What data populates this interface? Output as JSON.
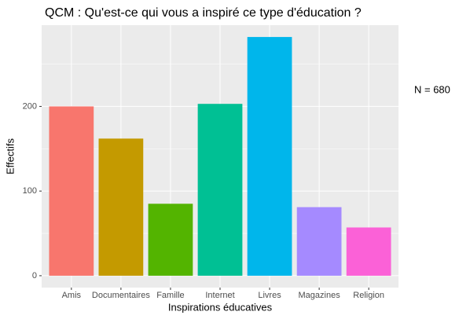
{
  "chart_data": {
    "type": "bar",
    "title": "QCM : Qu'est-ce qui vous a inspiré ce type d'éducation ?",
    "x_label": "Inspirations éducatives",
    "y_label": "Effectifs",
    "annotation": "N = 680",
    "categories": [
      "Amis",
      "Documentaires",
      "Famille",
      "Internet",
      "Livres",
      "Magazines",
      "Religion"
    ],
    "values": [
      200,
      162,
      85,
      203,
      282,
      81,
      57
    ],
    "colors": [
      "#F8766D",
      "#C49A00",
      "#53B400",
      "#00C094",
      "#00B6EB",
      "#A58AFF",
      "#FB61D7"
    ],
    "ylim": [
      -14,
      296
    ],
    "yticks": [
      0,
      100,
      200
    ],
    "minor_yticks": [
      50,
      150,
      250
    ],
    "grid": true
  }
}
